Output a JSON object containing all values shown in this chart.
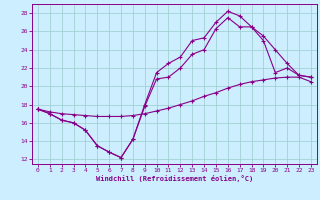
{
  "xlabel": "Windchill (Refroidissement éolien,°C)",
  "bg_color": "#cceeff",
  "line_color": "#880088",
  "grid_color": "#99cccc",
  "xlim": [
    -0.5,
    23.5
  ],
  "ylim": [
    11.5,
    29.0
  ],
  "yticks": [
    12,
    14,
    16,
    18,
    20,
    22,
    24,
    26,
    28
  ],
  "xticks": [
    0,
    1,
    2,
    3,
    4,
    5,
    6,
    7,
    8,
    9,
    10,
    11,
    12,
    13,
    14,
    15,
    16,
    17,
    18,
    19,
    20,
    21,
    22,
    23
  ],
  "curve1_x": [
    0,
    1,
    2,
    3,
    4,
    5,
    6,
    7,
    8,
    9,
    10,
    11,
    12,
    13,
    14,
    15,
    16,
    17,
    18,
    19,
    20,
    21,
    22,
    23
  ],
  "curve1_y": [
    17.5,
    17.0,
    16.3,
    16.0,
    15.2,
    13.5,
    12.8,
    12.2,
    14.2,
    18.0,
    21.5,
    22.5,
    23.2,
    25.0,
    25.3,
    27.0,
    28.2,
    27.7,
    26.5,
    25.0,
    21.5,
    22.0,
    21.2,
    21.0
  ],
  "curve2_x": [
    0,
    1,
    2,
    3,
    4,
    5,
    6,
    7,
    8,
    9,
    10,
    11,
    12,
    13,
    14,
    15,
    16,
    17,
    18,
    19,
    20,
    21,
    22,
    23
  ],
  "curve2_y": [
    17.5,
    17.0,
    16.3,
    16.0,
    15.2,
    13.5,
    12.8,
    12.2,
    14.2,
    17.8,
    20.8,
    21.0,
    22.0,
    23.5,
    24.0,
    26.3,
    27.5,
    26.5,
    26.5,
    25.5,
    24.0,
    22.5,
    21.2,
    21.0
  ],
  "curve3_x": [
    0,
    1,
    2,
    3,
    4,
    5,
    6,
    7,
    8,
    9,
    10,
    11,
    12,
    13,
    14,
    15,
    16,
    17,
    18,
    19,
    20,
    21,
    22,
    23
  ],
  "curve3_y": [
    17.5,
    17.2,
    17.0,
    16.9,
    16.8,
    16.7,
    16.7,
    16.7,
    16.8,
    17.0,
    17.3,
    17.6,
    18.0,
    18.4,
    18.9,
    19.3,
    19.8,
    20.2,
    20.5,
    20.7,
    20.9,
    21.0,
    21.0,
    20.5
  ]
}
